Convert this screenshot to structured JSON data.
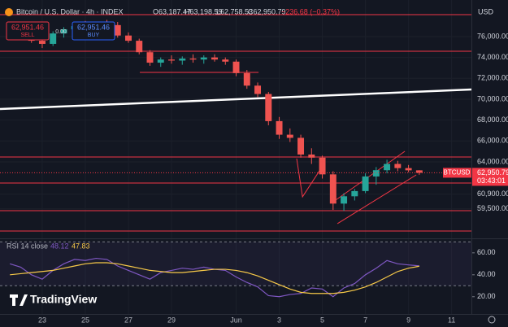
{
  "header": {
    "title": "Bitcoin / U.S. Dollar · 4h · INDEX",
    "ohlc": [
      "O63,187.47",
      "H63,198.59",
      "L62,758.53",
      "C62,950.79",
      "−236.68 (−0.37%)"
    ],
    "sell": {
      "price": "62,951.46",
      "label": "SELL"
    },
    "spread": "0.00",
    "buy": {
      "price": "62,951.46",
      "label": "BUY"
    },
    "logo": "TradingView"
  },
  "chart_data": [
    {
      "type": "candlestick",
      "currency": "USD",
      "x": [
        21.5,
        22,
        22.5,
        23,
        23.5,
        24,
        24.5,
        25,
        25.5,
        26,
        26.5,
        27,
        27.5,
        28,
        28.5,
        29,
        29.5,
        30,
        30.5,
        31,
        31.5,
        32,
        32.5,
        33,
        33.5,
        34,
        34.5,
        35,
        35.5,
        36,
        36.5,
        37,
        37.5,
        38,
        38.5,
        39,
        39.5,
        40,
        40.5
      ],
      "open": [
        76500,
        76800,
        76400,
        75600,
        75300,
        76300,
        76700,
        77000,
        76900,
        77200,
        77100,
        76100,
        75600,
        74500,
        73500,
        73800,
        73700,
        73900,
        73800,
        74000,
        73800,
        73600,
        72500,
        71300,
        70500,
        67900,
        66600,
        66300,
        64700,
        64400,
        62800,
        60000,
        60700,
        61200,
        62600,
        63200,
        63800,
        63400,
        63187.47
      ],
      "high": [
        77000,
        77100,
        76600,
        75900,
        76500,
        76900,
        77300,
        77500,
        77400,
        77600,
        77400,
        76400,
        75800,
        74700,
        74000,
        74200,
        74100,
        74300,
        74200,
        74300,
        74000,
        73800,
        72800,
        71600,
        70700,
        68300,
        67200,
        66600,
        65300,
        64600,
        63100,
        61000,
        61400,
        62900,
        63500,
        64200,
        64100,
        63700,
        63198.59
      ],
      "low": [
        76000,
        76300,
        75400,
        74900,
        75100,
        75900,
        76400,
        76600,
        76500,
        76800,
        75900,
        75400,
        74300,
        73200,
        73100,
        73400,
        73300,
        73500,
        73400,
        73600,
        73300,
        72200,
        71000,
        70200,
        67500,
        66200,
        65900,
        64400,
        63800,
        62400,
        59400,
        59300,
        60300,
        61000,
        61800,
        62900,
        63100,
        63000,
        62758.53
      ],
      "close": [
        76800,
        76400,
        75600,
        75300,
        76300,
        76700,
        77000,
        76900,
        77200,
        77100,
        76100,
        75600,
        74500,
        73500,
        73800,
        73700,
        73900,
        73800,
        74000,
        73800,
        73600,
        72500,
        71300,
        70500,
        67900,
        66600,
        66300,
        64700,
        64400,
        62800,
        60000,
        60700,
        61200,
        62600,
        63200,
        63800,
        63400,
        63187.47,
        62950.79
      ],
      "up_color": "#26a69a",
      "down_color": "#ef5350",
      "xlim": [
        21.04,
        42.92
      ],
      "xticks": [
        23,
        25,
        27,
        29,
        {
          "value": 32,
          "label": "Jun"
        },
        {
          "value": 34,
          "label": "3"
        },
        {
          "value": 36,
          "label": "5"
        },
        {
          "value": 38,
          "label": "7"
        },
        {
          "value": 40,
          "label": "9"
        },
        {
          "value": 42,
          "label": "11"
        }
      ],
      "ylim": [
        56750,
        78880
      ],
      "yticks": [
        {
          "value": 76000,
          "label": "76,000.00"
        },
        {
          "value": 74000,
          "label": "74,000.00"
        },
        {
          "value": 72000,
          "label": "72,000.00"
        },
        {
          "value": 70000,
          "label": "70,000.00"
        },
        {
          "value": 68000,
          "label": "68,000.00"
        },
        {
          "value": 66000,
          "label": "66,000.00"
        },
        {
          "value": 64000,
          "label": "64,000.00"
        },
        {
          "value": 60900,
          "label": "60,900.00"
        },
        {
          "value": 59500,
          "label": "59,500.00"
        }
      ],
      "grid": true,
      "last_price": {
        "value": 62950.79,
        "label": "62,950.79",
        "symbol": "BTCUSD",
        "countdown": "03:43:01",
        "color": "#f23645"
      },
      "hlines": {
        "color": "#f23645",
        "values": [
          78100,
          74590,
          61970,
          64460,
          59320,
          57370
        ]
      },
      "lines": [
        {
          "color": "#ffffff",
          "x": [
            21.04,
            42.92
          ],
          "values": [
            69060,
            70930
          ]
        },
        {
          "color": "#f23645",
          "x": [
            27.53,
            33.04
          ],
          "values": [
            72570,
            72570
          ]
        },
        {
          "color": "#f23645",
          "x": [
            27.83,
            42.92
          ],
          "values": [
            74590,
            74590
          ]
        },
        {
          "color": "#f23645",
          "x": [
            36.7,
            40.36
          ],
          "values": [
            58080,
            62750
          ]
        },
        {
          "color": "#f23645",
          "x": [
            36.51,
            39.83
          ],
          "values": [
            60180,
            65010
          ]
        },
        {
          "color": "#f23645",
          "x": [
            34.81,
            35.08,
            35.94
          ],
          "values": [
            64310,
            60650,
            63370
          ]
        }
      ]
    },
    {
      "type": "line",
      "title": "RSI 14 close",
      "x": [
        21.5,
        22,
        22.5,
        23,
        23.5,
        24,
        24.5,
        25,
        25.5,
        26,
        26.5,
        27,
        27.5,
        28,
        28.5,
        29,
        29.5,
        30,
        30.5,
        31,
        31.5,
        32,
        32.5,
        33,
        33.5,
        34,
        34.5,
        35,
        35.5,
        36,
        36.5,
        37,
        37.5,
        38,
        38.5,
        39,
        39.5,
        40,
        40.5
      ],
      "series": [
        {
          "color": "#7e57c2",
          "values": [
            50,
            47,
            40,
            36,
            44,
            50,
            54,
            53,
            55,
            54,
            48,
            44,
            40,
            36,
            42,
            44,
            46,
            45,
            47,
            45,
            44,
            38,
            33,
            29,
            21,
            20,
            22,
            23,
            28,
            27,
            20,
            28,
            32,
            40,
            46,
            53,
            50,
            49,
            48.12
          ]
        },
        {
          "color": "#f7c948",
          "values": [
            40,
            41,
            42,
            43,
            44,
            46,
            48,
            50,
            51,
            51,
            50,
            48,
            46,
            44,
            43,
            42,
            42,
            43,
            44,
            45,
            45,
            44,
            42,
            39,
            35,
            31,
            27,
            24,
            23,
            23,
            23,
            24,
            26,
            29,
            33,
            38,
            43,
            46,
            47.83
          ]
        }
      ],
      "xlim": [
        21.04,
        42.92
      ],
      "ylim": [
        5,
        71
      ],
      "yticks": [
        {
          "value": 60,
          "label": "60.00"
        },
        {
          "value": 40,
          "label": "40.00"
        },
        {
          "value": 20,
          "label": "20.00"
        }
      ],
      "levels": [
        70,
        30
      ]
    }
  ]
}
